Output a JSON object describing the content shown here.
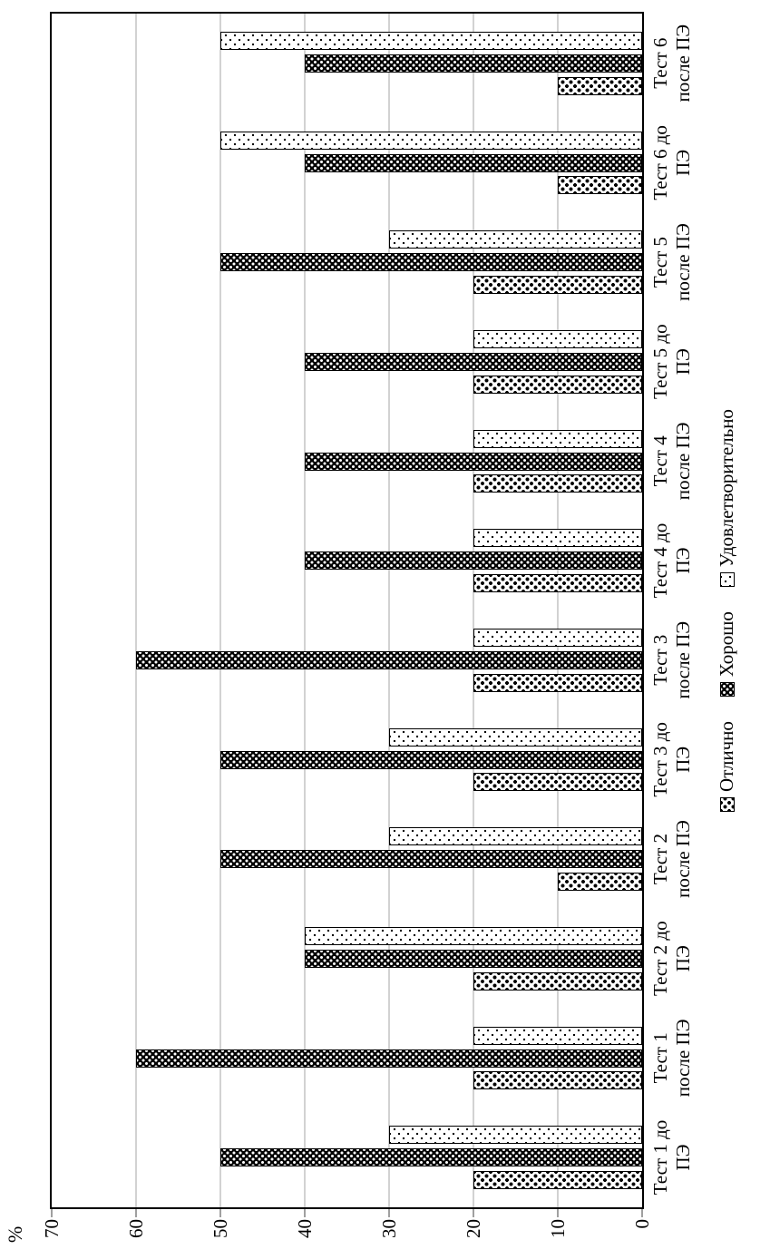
{
  "chart_data": {
    "type": "bar",
    "title": "",
    "xlabel": "",
    "ylabel": "%",
    "ylim": [
      0,
      70
    ],
    "yticks": [
      0,
      10,
      20,
      30,
      40,
      50,
      60,
      70
    ],
    "grid": true,
    "legend_position": "bottom",
    "categories": [
      {
        "line1": "Тест 1 до",
        "line2": "ПЭ"
      },
      {
        "line1": "Тест 1",
        "line2": "после ПЭ"
      },
      {
        "line1": "Тест 2 до",
        "line2": "ПЭ"
      },
      {
        "line1": "Тест 2",
        "line2": "после ПЭ"
      },
      {
        "line1": "Тест 3 до",
        "line2": "ПЭ"
      },
      {
        "line1": "Тест 3",
        "line2": "после ПЭ"
      },
      {
        "line1": "Тест 4 до",
        "line2": "ПЭ"
      },
      {
        "line1": "Тест 4",
        "line2": "после ПЭ"
      },
      {
        "line1": "Тест 5 до",
        "line2": "ПЭ"
      },
      {
        "line1": "Тест 5",
        "line2": "после ПЭ"
      },
      {
        "line1": "Тест 6 до",
        "line2": "ПЭ"
      },
      {
        "line1": "Тест 6",
        "line2": "после ПЭ"
      }
    ],
    "series": [
      {
        "name": "Отлично",
        "pattern": "dense-black-square-dots-on-white",
        "values": [
          20,
          20,
          20,
          10,
          20,
          20,
          20,
          20,
          20,
          20,
          10,
          10
        ]
      },
      {
        "name": "Хорошо",
        "pattern": "white-dots-on-black",
        "values": [
          50,
          60,
          40,
          50,
          50,
          60,
          40,
          40,
          40,
          50,
          40,
          40
        ]
      },
      {
        "name": "Удовлетворительно",
        "pattern": "sparse-small-black-dots-on-white",
        "values": [
          30,
          20,
          40,
          30,
          30,
          20,
          20,
          20,
          20,
          30,
          50,
          50
        ]
      }
    ]
  },
  "colors": {
    "background": "#ffffff",
    "axis": "#000000",
    "gridline": "#d2d2d2",
    "tick": "#a0a0a0",
    "text": "#000000",
    "bar_border": "#000000"
  }
}
